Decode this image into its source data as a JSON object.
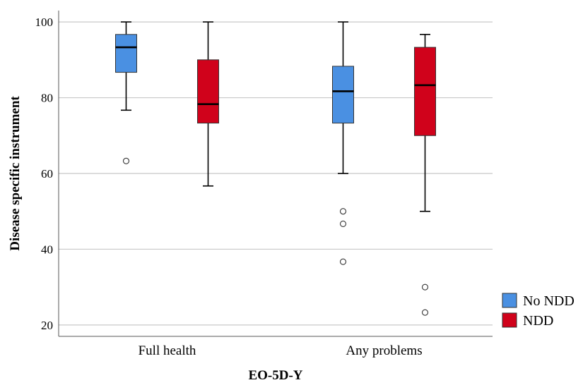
{
  "chart_data": {
    "type": "boxplot",
    "xlabel": "EO-5D-Y",
    "ylabel": "Disease specific instrument",
    "ylim": [
      17,
      103
    ],
    "yticks": [
      20,
      40,
      60,
      80,
      100
    ],
    "grid": "horizontal",
    "legend_position": "right-bottom",
    "categories": [
      "Full health",
      "Any problems"
    ],
    "series": [
      {
        "name": "No NDD",
        "color": "#4a90e2",
        "boxes": [
          {
            "category": "Full health",
            "whisker_low": 76.7,
            "q1": 86.7,
            "median": 93.3,
            "q3": 96.7,
            "whisker_high": 100,
            "outliers": [
              63.3
            ]
          },
          {
            "category": "Any problems",
            "whisker_low": 60,
            "q1": 73.3,
            "median": 81.7,
            "q3": 88.3,
            "whisker_high": 100,
            "outliers": [
              50,
              46.7,
              36.7
            ]
          }
        ]
      },
      {
        "name": "NDD",
        "color": "#d0021b",
        "boxes": [
          {
            "category": "Full health",
            "whisker_low": 56.7,
            "q1": 73.3,
            "median": 78.3,
            "q3": 90,
            "whisker_high": 100,
            "outliers": []
          },
          {
            "category": "Any problems",
            "whisker_low": 50,
            "q1": 70,
            "median": 83.3,
            "q3": 93.3,
            "whisker_high": 96.7,
            "outliers": [
              30,
              23.3
            ]
          }
        ]
      }
    ]
  }
}
